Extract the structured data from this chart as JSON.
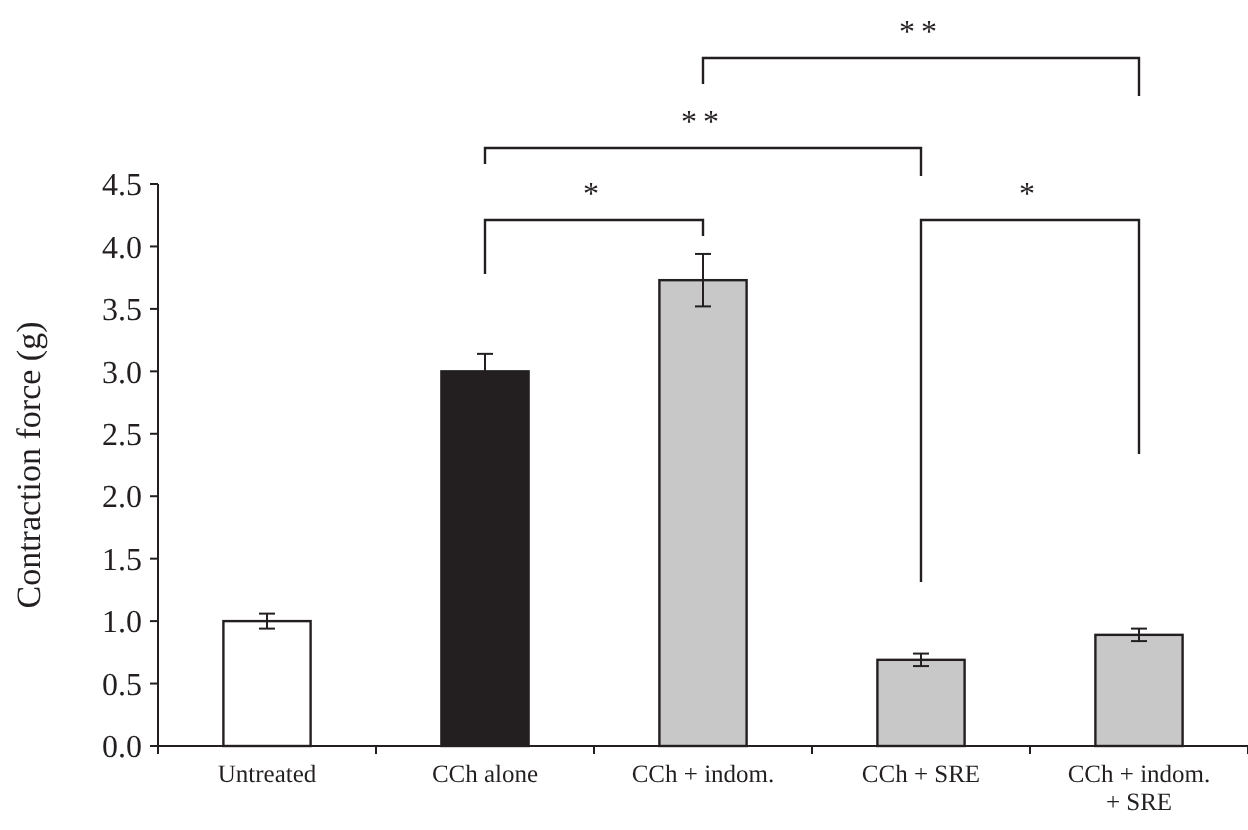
{
  "chart_data": {
    "type": "bar",
    "ylabel": "Contraction force (g)",
    "categories": [
      "Untreated",
      "CCh alone",
      "CCh + indom.",
      "CCh + SRE",
      "CCh + indom. + SRE"
    ],
    "values": [
      1.0,
      3.0,
      3.73,
      0.69,
      0.89
    ],
    "errors": [
      0.06,
      0.14,
      0.21,
      0.05,
      0.05
    ],
    "colors": [
      "#ffffff",
      "#231f20",
      "#c8c8c8",
      "#c8c8c8",
      "#c8c8c8"
    ],
    "ylim": [
      0,
      4.5
    ],
    "yticks": [
      {
        "value": 0,
        "label": "0.0"
      },
      {
        "value": 0.5,
        "label": "0.5"
      },
      {
        "value": 1,
        "label": "1.0"
      },
      {
        "value": 1.5,
        "label": "1.5"
      },
      {
        "value": 2,
        "label": "2.0"
      },
      {
        "value": 2.5,
        "label": "2.5"
      },
      {
        "value": 3,
        "label": "3.0"
      },
      {
        "value": 3.5,
        "label": "3.5"
      },
      {
        "value": 4,
        "label": "4.0"
      },
      {
        "value": 4.5,
        "label": "4.5"
      }
    ],
    "annotations": [
      "*",
      "**",
      "**",
      "*"
    ]
  }
}
